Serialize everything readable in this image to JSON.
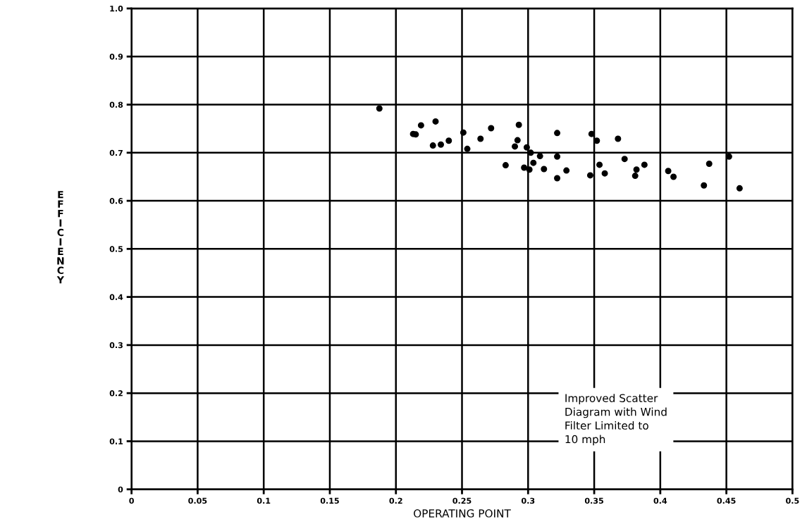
{
  "chart_data": {
    "type": "scatter",
    "xlabel": "OPERATING POINT",
    "ylabel": "EFFICIENCY",
    "annotations": [
      "Improved Scatter\nDiagram with Wind\nFilter Limited to\n10 mph"
    ],
    "x": [
      0.1875,
      0.213,
      0.215,
      0.219,
      0.23,
      0.228,
      0.234,
      0.24,
      0.251,
      0.254,
      0.264,
      0.272,
      0.293,
      0.292,
      0.29,
      0.299,
      0.302,
      0.283,
      0.297,
      0.301,
      0.304,
      0.309,
      0.312,
      0.322,
      0.322,
      0.322,
      0.329,
      0.348,
      0.352,
      0.368,
      0.347,
      0.354,
      0.358,
      0.373,
      0.382,
      0.381,
      0.388,
      0.406,
      0.41,
      0.437,
      0.433,
      0.452,
      0.46
    ],
    "values": [
      0.792,
      0.739,
      0.738,
      0.757,
      0.765,
      0.715,
      0.717,
      0.725,
      0.742,
      0.708,
      0.729,
      0.751,
      0.758,
      0.726,
      0.713,
      0.711,
      0.7,
      0.674,
      0.669,
      0.665,
      0.679,
      0.693,
      0.666,
      0.741,
      0.692,
      0.647,
      0.663,
      0.739,
      0.725,
      0.729,
      0.653,
      0.675,
      0.657,
      0.687,
      0.665,
      0.652,
      0.675,
      0.662,
      0.65,
      0.677,
      0.632,
      0.692,
      0.626
    ],
    "color": "#000000",
    "marker": "circle",
    "grid": true,
    "xlim": [
      0,
      0.5
    ],
    "xticks": [
      0,
      0.05,
      0.1,
      0.15,
      0.2,
      0.25,
      0.3,
      0.35,
      0.4,
      0.45,
      0.5
    ],
    "ylim": [
      0,
      1.0
    ],
    "yticks": [
      0,
      0.1,
      0.2,
      0.3,
      0.4,
      0.5,
      0.6,
      0.7,
      0.8,
      0.9,
      {
        "value": 1,
        "label": "1.0"
      }
    ]
  }
}
